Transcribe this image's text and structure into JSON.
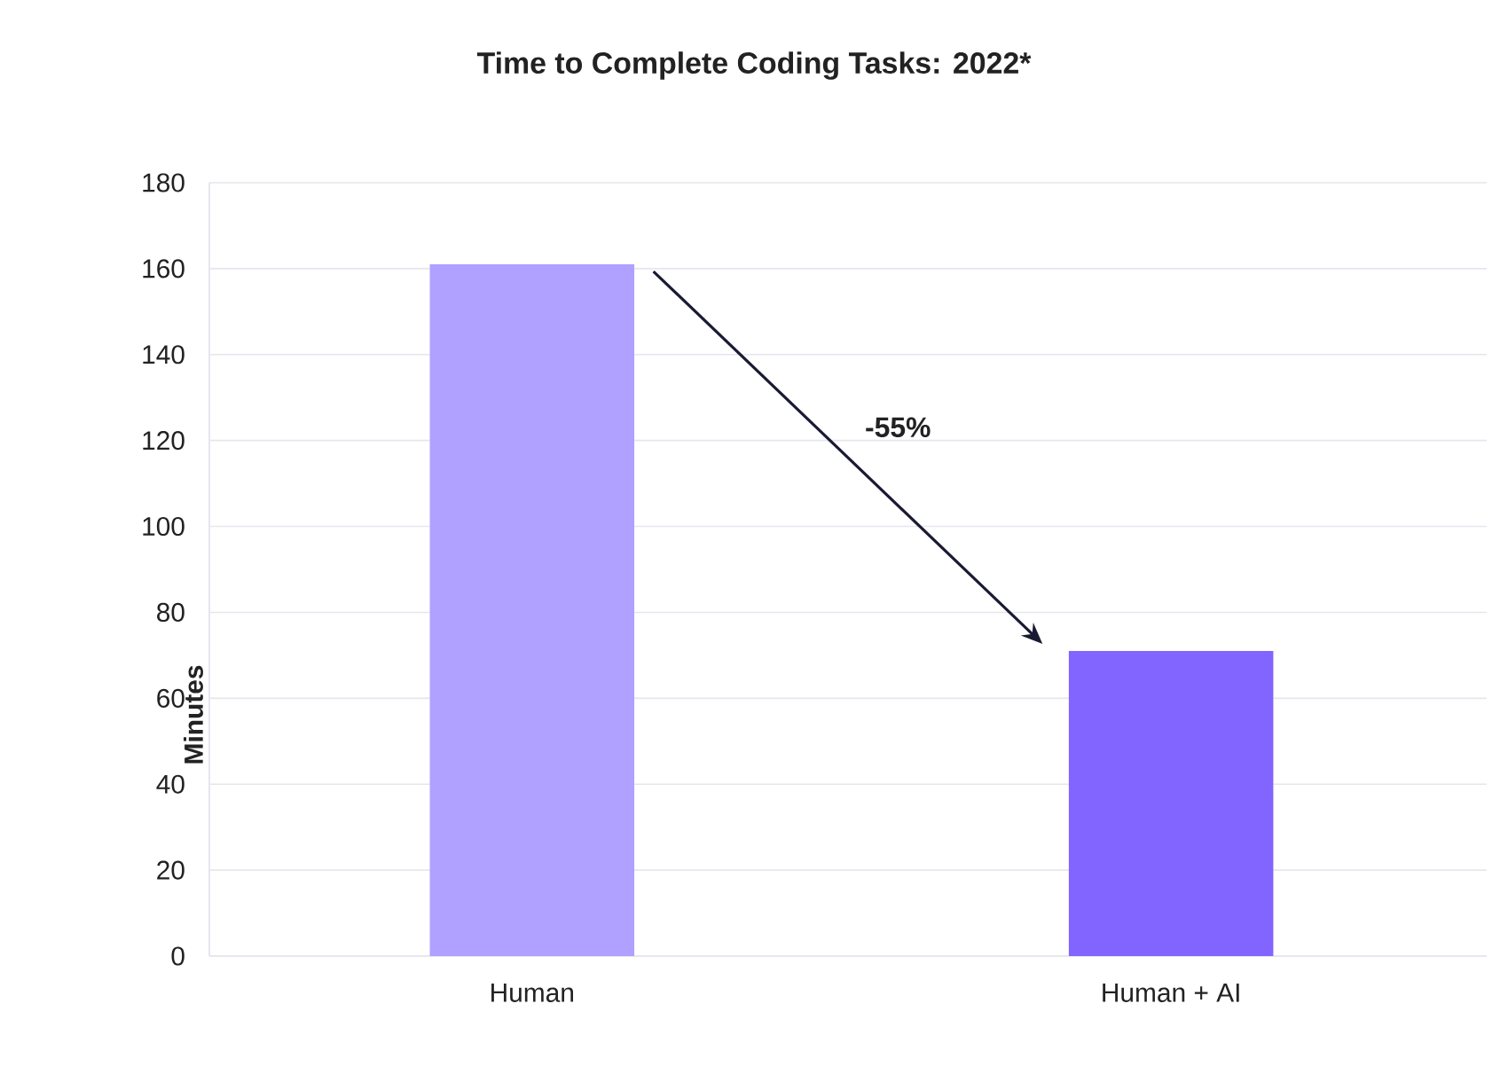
{
  "chart_data": {
    "type": "bar",
    "title": "Time to Complete Coding Tasks: 2022*",
    "ylabel": "Minutes",
    "categories": [
      "Human",
      "Human + AI"
    ],
    "values": [
      161,
      71
    ],
    "colors": [
      "#b0a0ff",
      "#8264ff"
    ],
    "ylim": [
      0,
      180
    ],
    "yticks": [
      0,
      20,
      40,
      60,
      80,
      100,
      120,
      140,
      160,
      180
    ],
    "grid": "y",
    "annotations": [
      "-55%"
    ]
  }
}
